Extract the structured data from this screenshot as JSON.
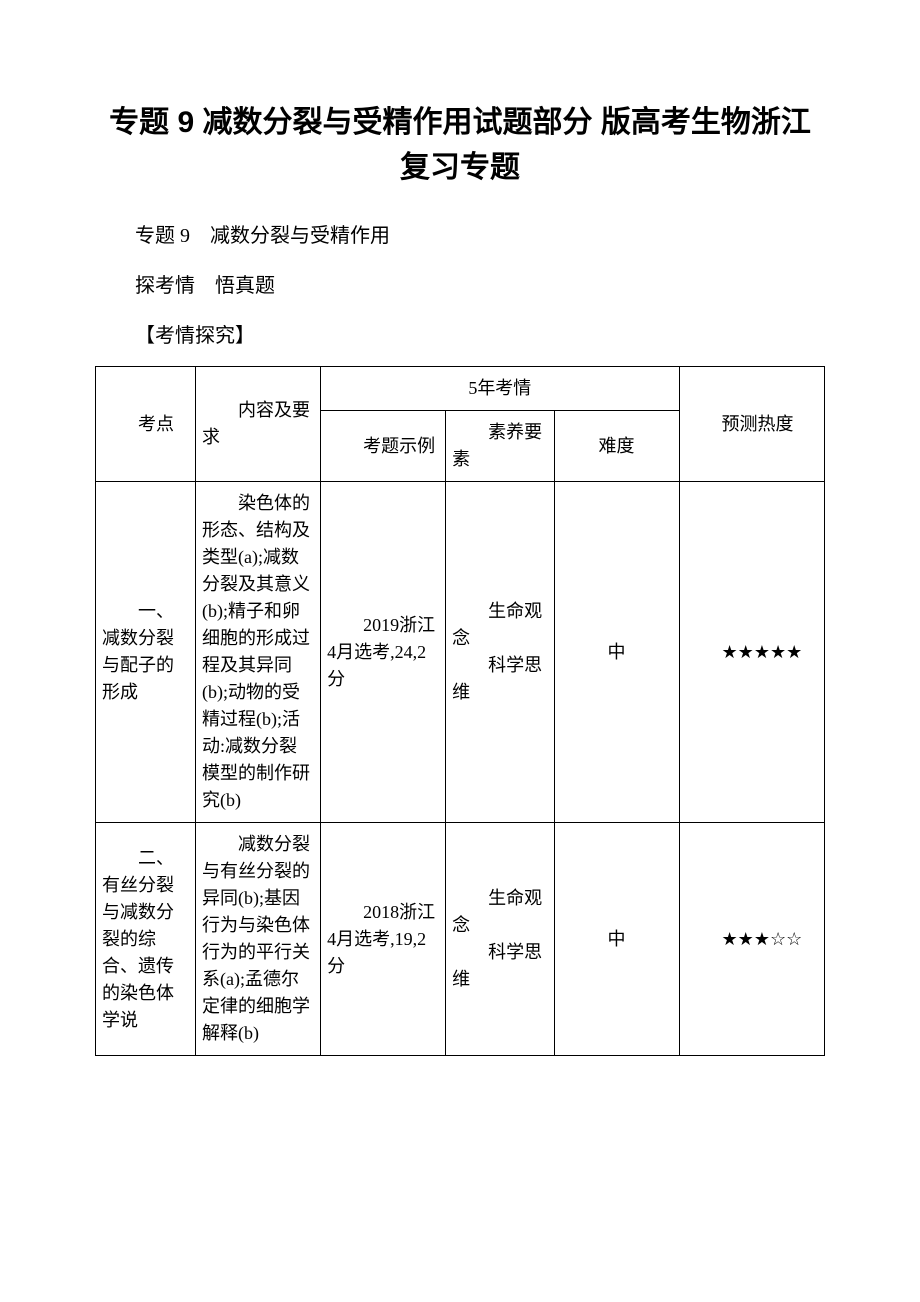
{
  "title": "专题 9 减数分裂与受精作用试题部分 版高考生物浙江复习专题",
  "subtitle": "专题 9　减数分裂与受精作用",
  "section": "探考情　悟真题",
  "bracket_heading": "【考情探究】",
  "table": {
    "header": {
      "topic": "考点",
      "content": "内容及要求",
      "exam_info": "5年考情",
      "example": "考题示例",
      "competency": "素养要素",
      "difficulty": "难度",
      "heat": "预测热度"
    },
    "rows": [
      {
        "topic": "一、减数分裂与配子的形成",
        "content": "染色体的形态、结构及类型(a);减数分裂及其意义(b);精子和卵细胞的形成过程及其异同(b);动物的受精过程(b);活动:减数分裂模型的制作研究(b)",
        "example": "2019浙江4月选考,24,2分",
        "competency_line1": "生命观念",
        "competency_line2": "科学思维",
        "difficulty": "中",
        "heat": "★★★★★"
      },
      {
        "topic": "二、有丝分裂与减数分裂的综合、遗传的染色体学说",
        "content": "减数分裂与有丝分裂的异同(b);基因行为与染色体行为的平行关系(a);孟德尔定律的细胞学解释(b)",
        "example": "2018浙江4月选考,19,2分",
        "competency_line1": "生命观念",
        "competency_line2": "科学思维",
        "difficulty": "中",
        "heat": "★★★☆☆"
      }
    ]
  }
}
